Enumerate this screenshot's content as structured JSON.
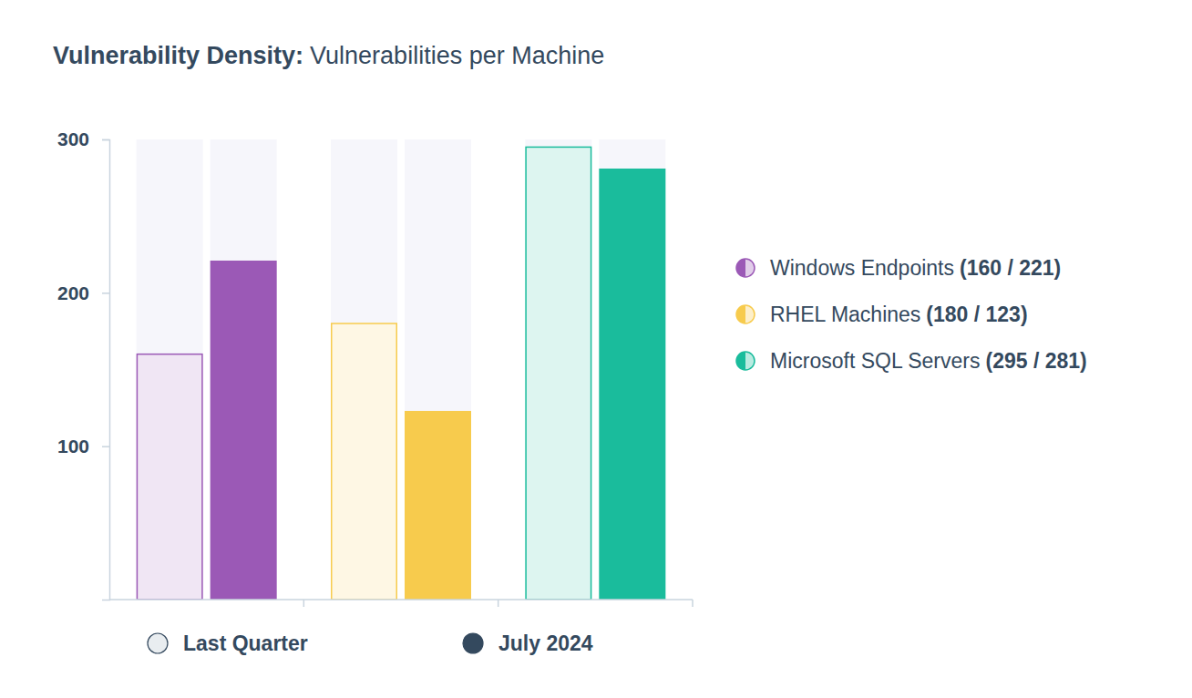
{
  "chart_data": {
    "type": "bar",
    "title": "Vulnerability Density:",
    "subtitle": "Vulnerabilities per Machine",
    "categories": [
      "Windows Endpoints",
      "RHEL Machines",
      "Microsoft SQL Servers"
    ],
    "legend_value_labels": [
      "(160 / 221)",
      "(180 / 123)",
      "(295 / 281)"
    ],
    "series": [
      {
        "name": "Last Quarter",
        "color": "#e9edf0",
        "colors": [
          "#9b59b6",
          "#f7cb4d",
          "#1abc9c"
        ],
        "values": [
          160,
          180,
          295
        ]
      },
      {
        "name": "July 2024",
        "color": "#34495e",
        "colors": [
          "#9b59b6",
          "#f7cb4d",
          "#1abc9c"
        ],
        "values": [
          221,
          123,
          281
        ]
      }
    ],
    "ylim": [
      0,
      300
    ],
    "yticks": [
      100,
      200,
      300
    ],
    "grid": false,
    "legend": "bottom"
  }
}
